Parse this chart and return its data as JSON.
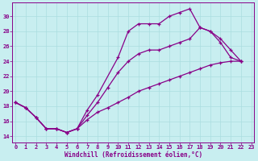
{
  "bg_color": "#c8eef0",
  "grid_color": "#aadde0",
  "line_color": "#880088",
  "xlabel": "Windchill (Refroidissement éolien,°C)",
  "xlim": [
    -0.3,
    23.3
  ],
  "ylim": [
    13.2,
    31.8
  ],
  "yticks": [
    14,
    16,
    18,
    20,
    22,
    24,
    26,
    28,
    30
  ],
  "xticks": [
    0,
    1,
    2,
    3,
    4,
    5,
    6,
    7,
    8,
    9,
    10,
    11,
    12,
    13,
    14,
    15,
    16,
    17,
    18,
    19,
    20,
    21,
    22,
    23
  ],
  "curve_upper_x": [
    0,
    1,
    2,
    3,
    4,
    5,
    6,
    7,
    8,
    10,
    11,
    12,
    13,
    14,
    15,
    16,
    17,
    18,
    19,
    20,
    21,
    22
  ],
  "curve_upper_y": [
    18.5,
    17.8,
    16.5,
    15.0,
    15.0,
    14.5,
    15.0,
    17.5,
    19.5,
    24.5,
    28.0,
    29.0,
    29.0,
    29.0,
    30.0,
    30.5,
    31.0,
    28.5,
    28.0,
    26.5,
    24.5,
    24.0
  ],
  "curve_lower_x": [
    0,
    1,
    2,
    3,
    4,
    5,
    6,
    7,
    8,
    9,
    10,
    11,
    12,
    13,
    14,
    15,
    16,
    17,
    18,
    19,
    20,
    21,
    22
  ],
  "curve_lower_y": [
    18.5,
    17.8,
    16.5,
    15.0,
    15.0,
    14.5,
    15.0,
    16.2,
    17.2,
    17.8,
    18.5,
    19.2,
    20.0,
    20.5,
    21.0,
    21.5,
    22.0,
    22.5,
    23.0,
    23.5,
    23.8,
    24.0,
    24.0
  ],
  "curve_mid_x": [
    0,
    1,
    2,
    3,
    4,
    5,
    6,
    7,
    8,
    9,
    10,
    11,
    12,
    13,
    14,
    15,
    16,
    17,
    18,
    19,
    20,
    21,
    22
  ],
  "curve_mid_y": [
    18.5,
    17.8,
    16.5,
    15.0,
    15.0,
    14.5,
    15.0,
    16.8,
    18.5,
    20.5,
    22.5,
    24.0,
    25.0,
    25.5,
    25.5,
    26.0,
    26.5,
    27.0,
    28.5,
    28.0,
    27.0,
    25.5,
    24.0
  ]
}
